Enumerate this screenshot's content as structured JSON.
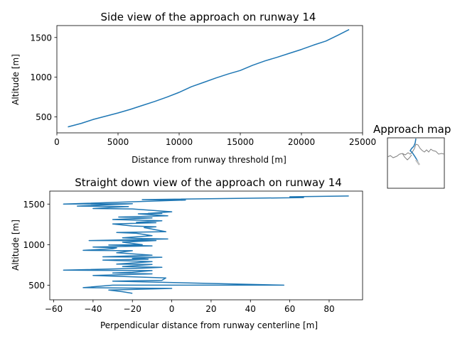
{
  "chart_data": [
    {
      "type": "line",
      "title": "Side view of the approach on runway 14",
      "xlabel": "Distance from runway threshold [m]",
      "ylabel": "Altitude [m]",
      "xlim": [
        0,
        25000
      ],
      "ylim": [
        300,
        1650
      ],
      "xticks": [
        0,
        5000,
        10000,
        15000,
        20000,
        25000
      ],
      "xtick_labels": [
        "0",
        "5000",
        "10000",
        "15000",
        "20000",
        "25000"
      ],
      "yticks": [
        500,
        1000,
        1500
      ],
      "ytick_labels": [
        "500",
        "1000",
        "1500"
      ],
      "grid": false,
      "color": "#1f77b4",
      "x": [
        900,
        2000,
        3000,
        4000,
        5000,
        6000,
        7000,
        8000,
        9000,
        10000,
        11000,
        12000,
        13000,
        14000,
        15000,
        16000,
        17000,
        18000,
        19000,
        20000,
        21000,
        22000,
        23000,
        23900
      ],
      "y": [
        375,
        420,
        470,
        510,
        550,
        595,
        645,
        695,
        750,
        810,
        880,
        935,
        990,
        1040,
        1085,
        1150,
        1205,
        1250,
        1300,
        1350,
        1405,
        1455,
        1530,
        1600
      ]
    },
    {
      "type": "line",
      "title": "Straight down view of the approach on runway 14",
      "xlabel": "Perpendicular distance from runway centerline [m]",
      "ylabel": "Altitude [m]",
      "xlim": [
        -62,
        97
      ],
      "ylim": [
        320,
        1660
      ],
      "xticks": [
        -60,
        -40,
        -20,
        0,
        20,
        40,
        60,
        80
      ],
      "xtick_labels": [
        "−60",
        "−40",
        "−20",
        "0",
        "20",
        "40",
        "60",
        "80"
      ],
      "yticks": [
        500,
        1000,
        1500
      ],
      "ytick_labels": [
        "500",
        "1000",
        "1500"
      ],
      "grid": false,
      "color": "#1f77b4",
      "x": [
        90,
        60,
        67,
        -15,
        7,
        -55,
        -20,
        -48,
        -22,
        -40,
        -20,
        0,
        -12,
        -5,
        -17,
        -2,
        -27,
        -10,
        -30,
        -5,
        -18,
        -8,
        -30,
        -20,
        -8,
        -14,
        -3,
        -28,
        -18,
        -10,
        -25,
        -15,
        -2,
        -42,
        -8,
        -25,
        -15,
        -32,
        -10,
        -40,
        -28,
        -30,
        -45,
        -20,
        -28,
        -10,
        -35,
        -5,
        -20,
        -12,
        -35,
        -10,
        -28,
        -10,
        -25,
        -5,
        -15,
        -55,
        -10,
        -20,
        -30,
        -10,
        -40,
        -3,
        -5,
        -30,
        57,
        -30,
        -45,
        0,
        -32,
        -25,
        -20
      ],
      "y": [
        1600,
        1590,
        1580,
        1555,
        1550,
        1500,
        1505,
        1475,
        1470,
        1445,
        1440,
        1405,
        1385,
        1385,
        1380,
        1355,
        1340,
        1330,
        1310,
        1295,
        1275,
        1270,
        1255,
        1230,
        1220,
        1210,
        1160,
        1150,
        1140,
        1110,
        1085,
        1075,
        1070,
        1050,
        1050,
        1030,
        1000,
        995,
        985,
        970,
        960,
        950,
        930,
        925,
        900,
        870,
        850,
        845,
        830,
        820,
        810,
        790,
        760,
        755,
        730,
        720,
        710,
        685,
        680,
        660,
        650,
        640,
        620,
        590,
        560,
        550,
        500,
        500,
        470,
        460,
        440,
        420,
        400
      ]
    }
  ],
  "inset": {
    "title": "Approach map",
    "route_color": "#1f77b4",
    "land_color": "#808080"
  }
}
